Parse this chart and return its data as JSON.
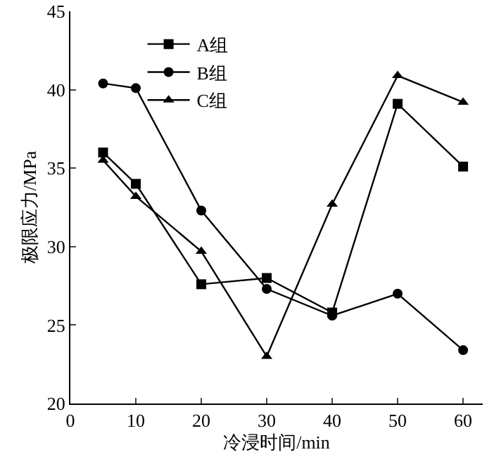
{
  "chart_data": {
    "type": "line",
    "xlabel": "冷浸时间/min",
    "ylabel": "极限应力/MPa",
    "x": [
      5,
      10,
      20,
      30,
      40,
      50,
      60
    ],
    "series": [
      {
        "name": "A组",
        "color": "#000000",
        "marker": "square",
        "values": [
          36.0,
          34.0,
          27.6,
          28.0,
          25.8,
          39.1,
          35.1
        ]
      },
      {
        "name": "B组",
        "color": "#000000",
        "marker": "circle",
        "values": [
          40.4,
          40.1,
          32.3,
          27.3,
          25.6,
          27.0,
          23.4
        ]
      },
      {
        "name": "C组",
        "color": "#000000",
        "marker": "triangle",
        "values": [
          35.5,
          33.2,
          29.7,
          23.0,
          32.7,
          40.9,
          39.2
        ]
      }
    ],
    "xlim": [
      0,
      63
    ],
    "xticks": [
      0,
      10,
      20,
      30,
      40,
      50,
      60
    ],
    "ylim": [
      20,
      45
    ],
    "yticks": [
      20,
      25,
      30,
      35,
      40,
      45
    ],
    "grid": false,
    "legend": "top left",
    "line_style": "solid"
  }
}
